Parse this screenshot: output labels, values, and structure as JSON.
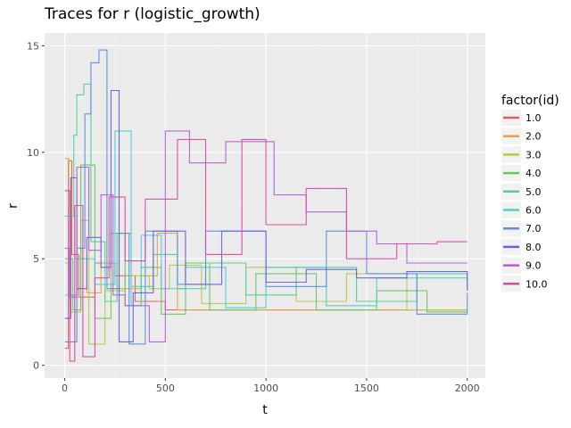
{
  "chart_data": {
    "type": "line",
    "title": "Traces for r (logistic_growth)",
    "xlabel": "t",
    "ylabel": "r",
    "xlim": [
      -100,
      2090
    ],
    "ylim": [
      -0.6,
      15.6
    ],
    "x_ticks": [
      0,
      500,
      1000,
      1500,
      2000
    ],
    "x_tick_labels": [
      "0",
      "500",
      "1000",
      "1500",
      "2000"
    ],
    "y_ticks": [
      0,
      5,
      10,
      15
    ],
    "y_tick_labels": [
      "0",
      "5",
      "10",
      "15"
    ],
    "grid": true,
    "background": "#ebebeb",
    "legend": {
      "title": "factor(id)",
      "position": "right"
    },
    "series": [
      {
        "name": "1.0",
        "color": "#e0605a",
        "steps": [
          [
            0,
            0.8
          ],
          [
            18,
            9.6
          ],
          [
            35,
            5.2
          ],
          [
            70,
            3.2
          ],
          [
            150,
            4.8
          ],
          [
            250,
            4.2
          ],
          [
            350,
            3.0
          ],
          [
            500,
            2.6
          ],
          [
            700,
            2.6
          ],
          [
            1000,
            2.6
          ],
          [
            1400,
            2.6
          ],
          [
            1700,
            2.6
          ],
          [
            2000,
            2.6
          ]
        ]
      },
      {
        "name": "2.0",
        "color": "#dca548",
        "steps": [
          [
            0,
            9.7
          ],
          [
            20,
            7.4
          ],
          [
            50,
            5.0
          ],
          [
            110,
            3.4
          ],
          [
            180,
            4.8
          ],
          [
            260,
            3.6
          ],
          [
            380,
            4.2
          ],
          [
            460,
            6.2
          ],
          [
            560,
            2.6
          ],
          [
            800,
            2.6
          ],
          [
            1200,
            2.6
          ],
          [
            1600,
            2.6
          ],
          [
            2000,
            2.6
          ]
        ]
      },
      {
        "name": "3.0",
        "color": "#b8c94a",
        "steps": [
          [
            0,
            4.8
          ],
          [
            30,
            2.5
          ],
          [
            80,
            6.8
          ],
          [
            120,
            1.0
          ],
          [
            200,
            3.5
          ],
          [
            300,
            4.2
          ],
          [
            420,
            3.6
          ],
          [
            520,
            4.7
          ],
          [
            680,
            2.9
          ],
          [
            900,
            4.6
          ],
          [
            1150,
            3.0
          ],
          [
            1400,
            4.3
          ],
          [
            1700,
            2.6
          ],
          [
            2000,
            2.6
          ]
        ]
      },
      {
        "name": "4.0",
        "color": "#66c85a",
        "steps": [
          [
            0,
            5.0
          ],
          [
            40,
            2.6
          ],
          [
            80,
            9.4
          ],
          [
            150,
            2.2
          ],
          [
            230,
            6.2
          ],
          [
            300,
            2.8
          ],
          [
            380,
            4.6
          ],
          [
            480,
            2.4
          ],
          [
            600,
            4.8
          ],
          [
            720,
            2.6
          ],
          [
            950,
            4.3
          ],
          [
            1250,
            2.6
          ],
          [
            1550,
            3.5
          ],
          [
            1800,
            2.5
          ],
          [
            2000,
            2.5
          ]
        ]
      },
      {
        "name": "5.0",
        "color": "#4fd38e",
        "steps": [
          [
            0,
            7.0
          ],
          [
            45,
            10.8
          ],
          [
            60,
            12.7
          ],
          [
            95,
            13.2
          ],
          [
            130,
            5.8
          ],
          [
            200,
            3.0
          ],
          [
            260,
            6.2
          ],
          [
            330,
            3.7
          ],
          [
            440,
            5.2
          ],
          [
            560,
            3.6
          ],
          [
            700,
            4.8
          ],
          [
            900,
            3.3
          ],
          [
            1150,
            4.6
          ],
          [
            1450,
            3.0
          ],
          [
            1750,
            4.3
          ],
          [
            2000,
            4.0
          ]
        ]
      },
      {
        "name": "6.0",
        "color": "#4dcfcf",
        "steps": [
          [
            0,
            3.3
          ],
          [
            60,
            5.0
          ],
          [
            150,
            3.8
          ],
          [
            250,
            11.0
          ],
          [
            330,
            2.8
          ],
          [
            380,
            6.1
          ],
          [
            480,
            3.6
          ],
          [
            600,
            4.6
          ],
          [
            800,
            2.7
          ],
          [
            1000,
            4.6
          ],
          [
            1300,
            2.8
          ],
          [
            1550,
            4.1
          ],
          [
            2000,
            3.6
          ]
        ]
      },
      {
        "name": "7.0",
        "color": "#5b8edb",
        "steps": [
          [
            0,
            1.1
          ],
          [
            60,
            5.5
          ],
          [
            100,
            11.8
          ],
          [
            130,
            14.2
          ],
          [
            170,
            14.8
          ],
          [
            210,
            3.6
          ],
          [
            270,
            6.2
          ],
          [
            320,
            1.0
          ],
          [
            400,
            6.3
          ],
          [
            560,
            3.8
          ],
          [
            700,
            6.3
          ],
          [
            1000,
            3.7
          ],
          [
            1300,
            6.3
          ],
          [
            1500,
            4.3
          ],
          [
            1750,
            2.4
          ],
          [
            2000,
            3.4
          ]
        ]
      },
      {
        "name": "8.0",
        "color": "#6c5fd8",
        "steps": [
          [
            0,
            2.2
          ],
          [
            30,
            8.8
          ],
          [
            60,
            3.6
          ],
          [
            110,
            6.0
          ],
          [
            180,
            4.6
          ],
          [
            230,
            12.9
          ],
          [
            270,
            1.1
          ],
          [
            340,
            3.4
          ],
          [
            440,
            6.3
          ],
          [
            600,
            3.8
          ],
          [
            780,
            6.3
          ],
          [
            1000,
            3.9
          ],
          [
            1200,
            4.5
          ],
          [
            1450,
            4.1
          ],
          [
            1700,
            4.4
          ],
          [
            2000,
            3.5
          ]
        ]
      },
      {
        "name": "9.0",
        "color": "#b65cd8",
        "steps": [
          [
            0,
            5.5
          ],
          [
            20,
            3.2
          ],
          [
            60,
            9.3
          ],
          [
            120,
            5.4
          ],
          [
            180,
            8.0
          ],
          [
            240,
            3.3
          ],
          [
            300,
            2.8
          ],
          [
            420,
            1.1
          ],
          [
            500,
            11.0
          ],
          [
            620,
            9.5
          ],
          [
            800,
            10.5
          ],
          [
            1040,
            8.0
          ],
          [
            1200,
            7.2
          ],
          [
            1400,
            6.3
          ],
          [
            1550,
            5.7
          ],
          [
            1700,
            4.8
          ],
          [
            2000,
            4.8
          ]
        ]
      },
      {
        "name": "10.0",
        "color": "#d84aa6",
        "steps": [
          [
            0,
            8.2
          ],
          [
            25,
            0.2
          ],
          [
            50,
            7.5
          ],
          [
            90,
            0.4
          ],
          [
            150,
            4.1
          ],
          [
            220,
            7.9
          ],
          [
            300,
            4.9
          ],
          [
            400,
            7.8
          ],
          [
            560,
            10.6
          ],
          [
            700,
            5.2
          ],
          [
            880,
            10.6
          ],
          [
            1000,
            6.6
          ],
          [
            1200,
            8.3
          ],
          [
            1400,
            5.0
          ],
          [
            1650,
            5.7
          ],
          [
            1850,
            5.8
          ],
          [
            2000,
            5.8
          ]
        ]
      }
    ]
  }
}
